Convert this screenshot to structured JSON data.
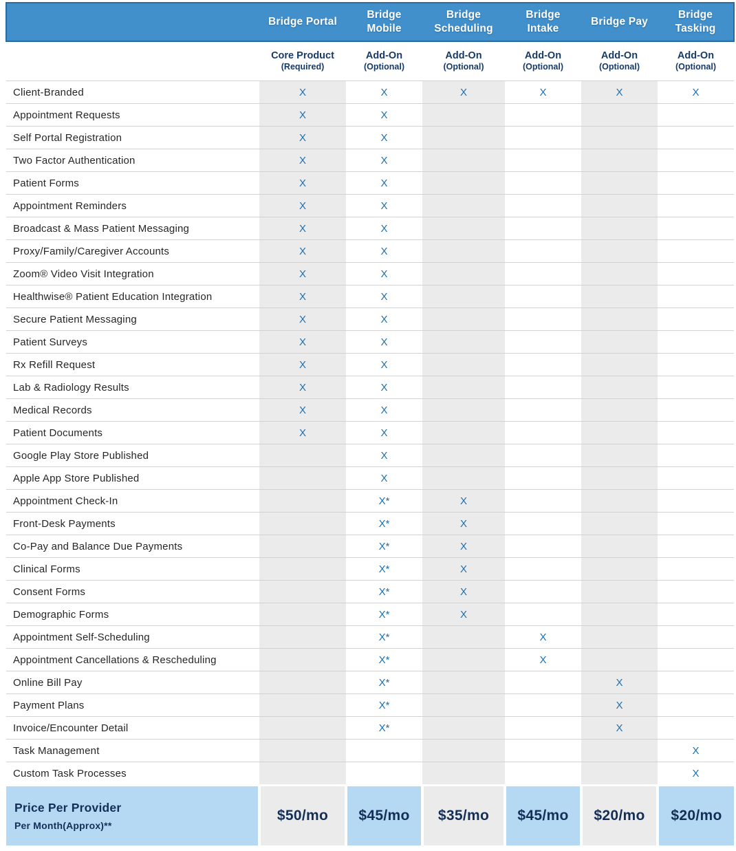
{
  "colors": {
    "header_bg": "#4190cc",
    "header_border": "#2a6a9f",
    "header_text": "#ffffff",
    "subheader_text": "#173a66",
    "mark": "#1d6fae",
    "shade": "#ebebeb",
    "footer_blue": "#b5d9f2",
    "price_text": "#132f58",
    "row_border": "#d2d2d2",
    "feature_text": "#262626"
  },
  "chart_data": {
    "type": "table",
    "title": "Bridge product feature and pricing comparison",
    "products": [
      {
        "name": "Bridge Portal",
        "type": "Core Product",
        "type_note": "(Required)",
        "price": "$50/mo"
      },
      {
        "name": "Bridge Mobile",
        "type": "Add-On",
        "type_note": "(Optional)",
        "price": "$45/mo"
      },
      {
        "name": "Bridge Scheduling",
        "type": "Add-On",
        "type_note": "(Optional)",
        "price": "$35/mo"
      },
      {
        "name": "Bridge Intake",
        "type": "Add-On",
        "type_note": "(Optional)",
        "price": "$45/mo"
      },
      {
        "name": "Bridge Pay",
        "type": "Add-On",
        "type_note": "(Optional)",
        "price": "$20/mo"
      },
      {
        "name": "Bridge Tasking",
        "type": "Add-On",
        "type_note": "(Optional)",
        "price": "$20/mo"
      }
    ],
    "features": [
      {
        "name": "Client-Branded",
        "marks": [
          "X",
          "X",
          "X",
          "X",
          "X",
          "X"
        ]
      },
      {
        "name": "Appointment Requests",
        "marks": [
          "X",
          "X",
          "",
          "",
          "",
          ""
        ]
      },
      {
        "name": "Self Portal Registration",
        "marks": [
          "X",
          "X",
          "",
          "",
          "",
          ""
        ]
      },
      {
        "name": "Two Factor Authentication",
        "marks": [
          "X",
          "X",
          "",
          "",
          "",
          ""
        ]
      },
      {
        "name": "Patient Forms",
        "marks": [
          "X",
          "X",
          "",
          "",
          "",
          ""
        ]
      },
      {
        "name": "Appointment Reminders",
        "marks": [
          "X",
          "X",
          "",
          "",
          "",
          ""
        ]
      },
      {
        "name": "Broadcast & Mass Patient Messaging",
        "marks": [
          "X",
          "X",
          "",
          "",
          "",
          ""
        ]
      },
      {
        "name": "Proxy/Family/Caregiver Accounts",
        "marks": [
          "X",
          "X",
          "",
          "",
          "",
          ""
        ]
      },
      {
        "name": "Zoom® Video Visit Integration",
        "marks": [
          "X",
          "X",
          "",
          "",
          "",
          ""
        ]
      },
      {
        "name": "Healthwise® Patient Education Integration",
        "marks": [
          "X",
          "X",
          "",
          "",
          "",
          ""
        ]
      },
      {
        "name": "Secure Patient Messaging",
        "marks": [
          "X",
          "X",
          "",
          "",
          "",
          ""
        ]
      },
      {
        "name": "Patient Surveys",
        "marks": [
          "X",
          "X",
          "",
          "",
          "",
          ""
        ]
      },
      {
        "name": "Rx Refill Request",
        "marks": [
          "X",
          "X",
          "",
          "",
          "",
          ""
        ]
      },
      {
        "name": "Lab & Radiology Results",
        "marks": [
          "X",
          "X",
          "",
          "",
          "",
          ""
        ]
      },
      {
        "name": "Medical Records",
        "marks": [
          "X",
          "X",
          "",
          "",
          "",
          ""
        ]
      },
      {
        "name": "Patient Documents",
        "marks": [
          "X",
          "X",
          "",
          "",
          "",
          ""
        ]
      },
      {
        "name": "Google Play Store Published",
        "marks": [
          "",
          "X",
          "",
          "",
          "",
          ""
        ]
      },
      {
        "name": "Apple App Store Published",
        "marks": [
          "",
          "X",
          "",
          "",
          "",
          ""
        ]
      },
      {
        "name": "Appointment Check-In",
        "marks": [
          "",
          "X*",
          "X",
          "",
          "",
          ""
        ]
      },
      {
        "name": "Front-Desk Payments",
        "marks": [
          "",
          "X*",
          "X",
          "",
          "",
          ""
        ]
      },
      {
        "name": "Co-Pay and Balance Due Payments",
        "marks": [
          "",
          "X*",
          "X",
          "",
          "",
          ""
        ]
      },
      {
        "name": "Clinical Forms",
        "marks": [
          "",
          "X*",
          "X",
          "",
          "",
          ""
        ]
      },
      {
        "name": "Consent Forms",
        "marks": [
          "",
          "X*",
          "X",
          "",
          "",
          ""
        ]
      },
      {
        "name": "Demographic Forms",
        "marks": [
          "",
          "X*",
          "X",
          "",
          "",
          ""
        ]
      },
      {
        "name": "Appointment Self-Scheduling",
        "marks": [
          "",
          "X*",
          "",
          "X",
          "",
          ""
        ]
      },
      {
        "name": "Appointment Cancellations & Rescheduling",
        "marks": [
          "",
          "X*",
          "",
          "X",
          "",
          ""
        ]
      },
      {
        "name": "Online Bill Pay",
        "marks": [
          "",
          "X*",
          "",
          "",
          "X",
          ""
        ]
      },
      {
        "name": "Payment Plans",
        "marks": [
          "",
          "X*",
          "",
          "",
          "X",
          ""
        ]
      },
      {
        "name": "Invoice/Encounter Detail",
        "marks": [
          "",
          "X*",
          "",
          "",
          "X",
          ""
        ]
      },
      {
        "name": "Task Management",
        "marks": [
          "",
          "",
          "",
          "",
          "",
          "X"
        ]
      },
      {
        "name": "Custom Task Processes",
        "marks": [
          "",
          "",
          "",
          "",
          "",
          "X"
        ]
      }
    ],
    "price_row": {
      "label_line1": "Price Per Provider",
      "label_line2": "Per Month(Approx)**",
      "values": [
        "$50/mo",
        "$45/mo",
        "$35/mo",
        "$45/mo",
        "$20/mo",
        "$20/mo"
      ]
    }
  }
}
